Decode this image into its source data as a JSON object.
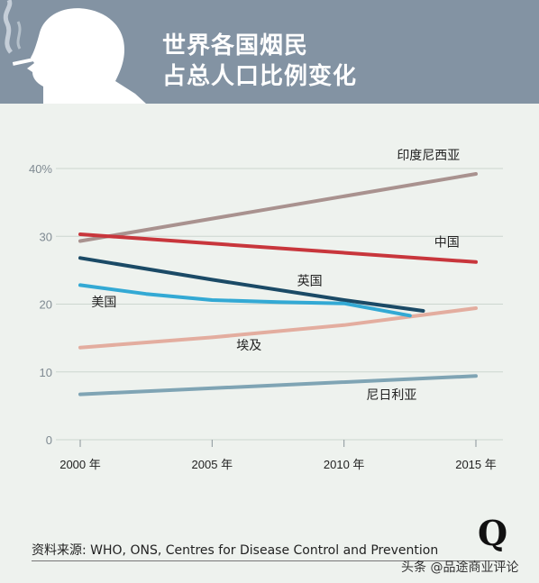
{
  "header": {
    "title_line1": "世界各国烟民",
    "title_line2": "占总人口比例变化"
  },
  "chart_data": {
    "type": "line",
    "title": "世界各国烟民占总人口比例变化",
    "x_ticks": [
      "2000 年",
      "2005 年",
      "2010 年",
      "2015 年"
    ],
    "y_ticks": [
      "0",
      "10",
      "20",
      "30",
      "40%"
    ],
    "xlim": [
      2000,
      2015
    ],
    "ylim": [
      0,
      40
    ],
    "grid": "horizontal",
    "series": [
      {
        "name": "印度尼西亚",
        "color": "#a9928f",
        "x": [
          2000,
          2015
        ],
        "y": [
          29.3,
          39.2
        ]
      },
      {
        "name": "中国",
        "color": "#c8363c",
        "x": [
          2000,
          2015
        ],
        "y": [
          30.3,
          26.2
        ]
      },
      {
        "name": "英国",
        "color": "#1b4a66",
        "x": [
          2000,
          2005,
          2010,
          2013
        ],
        "y": [
          26.8,
          23.6,
          20.6,
          19.0
        ]
      },
      {
        "name": "美国",
        "color": "#33a9d4",
        "x": [
          2000,
          2002.5,
          2005,
          2007.5,
          2010,
          2012.5
        ],
        "y": [
          22.8,
          21.5,
          20.6,
          20.3,
          20.1,
          18.3
        ]
      },
      {
        "name": "埃及",
        "color": "#e3ad9f",
        "x": [
          2000,
          2005,
          2010,
          2015
        ],
        "y": [
          13.6,
          15.1,
          16.9,
          19.4
        ]
      },
      {
        "name": "尼日利亚",
        "color": "#7fa4b4",
        "x": [
          2000,
          2015
        ],
        "y": [
          6.7,
          9.4
        ]
      }
    ]
  },
  "footer": {
    "source": "资料来源: WHO, ONS, Centres for Disease Control and Prevention",
    "logo": "Q",
    "watermark": "头条 @品途商业评论"
  }
}
